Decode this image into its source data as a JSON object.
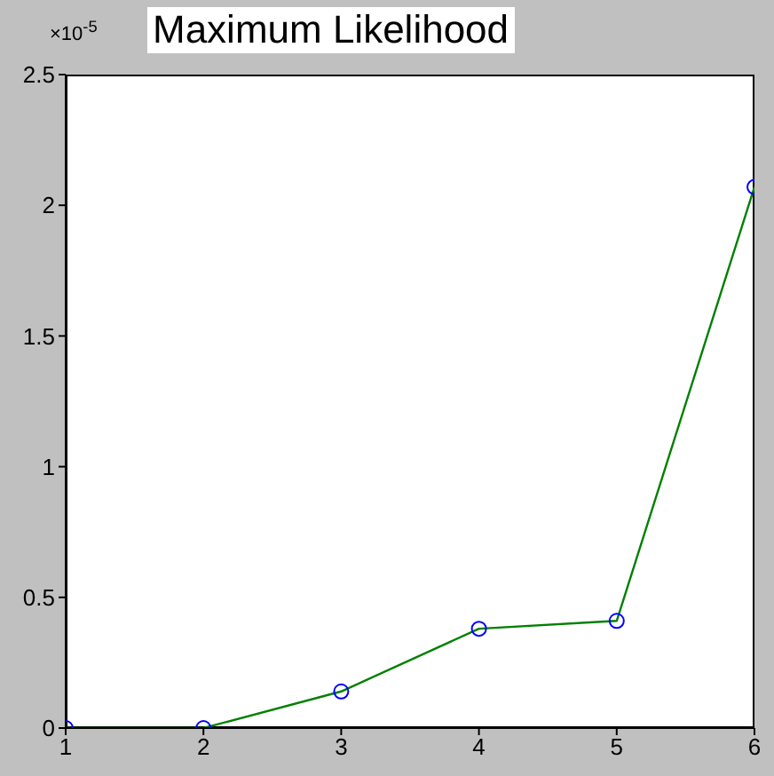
{
  "chart_data": {
    "type": "line",
    "title": "Maximum Likelihood",
    "annotations": [
      "×10$^{-5}$"
    ],
    "x": [
      1,
      2,
      3,
      4,
      5,
      6
    ],
    "series": [
      {
        "color": "#008000",
        "values": [
          0,
          0,
          0.14,
          0.38,
          0.41,
          2.07
        ]
      }
    ],
    "xlim": [
      1,
      6
    ],
    "xticks": [
      1,
      2,
      3,
      4,
      5,
      6
    ],
    "ylim": [
      0,
      2.5
    ],
    "yticks": [
      0,
      0.5,
      1,
      1.5,
      2,
      2.5
    ],
    "marker": "circle",
    "line_style": "solid",
    "grid": false,
    "legend": false
  }
}
